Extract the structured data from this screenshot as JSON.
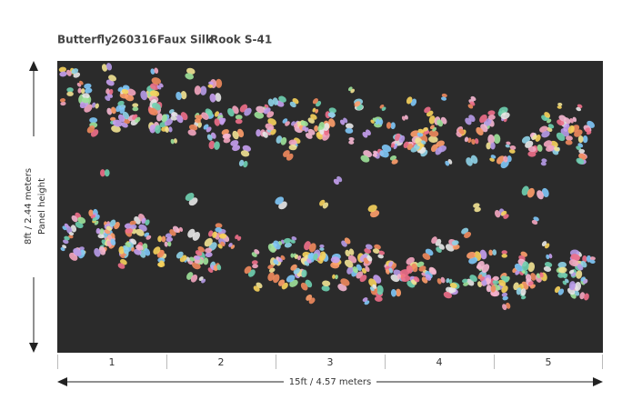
{
  "header": {
    "pattern": "Butterfly",
    "code": "260316",
    "finish": "Faux Silk",
    "colorway": "Rook S-41"
  },
  "dimensions": {
    "height_label": "Panel height",
    "height": "8ft / 2.44 meters",
    "width": "15ft / 4.57 meters"
  },
  "panels": [
    "1",
    "2",
    "3",
    "4",
    "5"
  ]
}
